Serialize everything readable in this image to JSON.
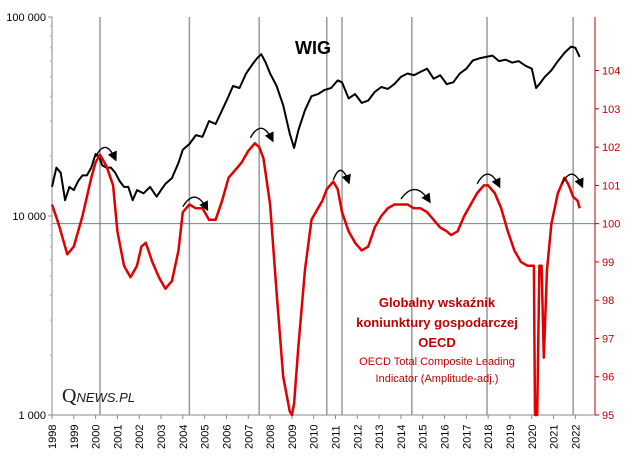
{
  "logo": {
    "q": "Q",
    "rest": "NEWS.PL"
  },
  "colors": {
    "wig": "#000000",
    "oecd": "#e00000",
    "right_axis": "#c00000",
    "hline": "#4a90b8",
    "vlines": "#9a9a9a"
  },
  "chart_data": {
    "type": "line",
    "title": "WIG",
    "x": {
      "ticks": [
        "1998",
        "1999",
        "2000",
        "2001",
        "2002",
        "2003",
        "2004",
        "2005",
        "2006",
        "2007",
        "2008",
        "2009",
        "2010",
        "2011",
        "2012",
        "2013",
        "2014",
        "2015",
        "2016",
        "2017",
        "2018",
        "2019",
        "2020",
        "2021",
        "2022"
      ],
      "range": [
        1998,
        2022.9
      ]
    },
    "y_left": {
      "scale": "log",
      "range": [
        1000,
        100000
      ],
      "ticks": [
        {
          "v": 1000,
          "label": "1 000"
        },
        {
          "v": 10000,
          "label": "10 000"
        },
        {
          "v": 100000,
          "label": "100 000"
        }
      ]
    },
    "y_right": {
      "range": [
        95,
        105.4
      ],
      "ticks": [
        {
          "v": 95,
          "label": "95"
        },
        {
          "v": 96,
          "label": "96"
        },
        {
          "v": 97,
          "label": "97"
        },
        {
          "v": 98,
          "label": "98"
        },
        {
          "v": 99,
          "label": "99"
        },
        {
          "v": 100,
          "label": "100"
        },
        {
          "v": 101,
          "label": "101"
        },
        {
          "v": 102,
          "label": "102"
        },
        {
          "v": 103,
          "label": "103"
        },
        {
          "v": 104,
          "label": "104"
        }
      ]
    },
    "reference_line": 100,
    "vertical_lines": [
      2000.2,
      2004.3,
      2007.5,
      2010.6,
      2011.3,
      2014.5,
      2017.95,
      2021.9
    ],
    "annotation": {
      "title_lines": [
        "Globalny wskaźnik",
        "koniunktury gospodarczej",
        "OECD"
      ],
      "subtitle_lines": [
        "OECD Total Composite Leading",
        "Indicator (Amplitude-adj.)"
      ]
    },
    "series": [
      {
        "name": "WIG",
        "axis": "left",
        "x": [
          1998.0,
          1998.2,
          1998.4,
          1998.6,
          1998.8,
          1999.0,
          1999.2,
          1999.4,
          1999.6,
          1999.8,
          2000.0,
          2000.15,
          2000.3,
          2000.5,
          2000.7,
          2000.9,
          2001.1,
          2001.3,
          2001.5,
          2001.7,
          2001.9,
          2002.2,
          2002.5,
          2002.8,
          2003.0,
          2003.2,
          2003.5,
          2003.8,
          2004.0,
          2004.3,
          2004.6,
          2004.9,
          2005.2,
          2005.5,
          2005.8,
          2006.1,
          2006.3,
          2006.6,
          2006.9,
          2007.2,
          2007.4,
          2007.6,
          2007.8,
          2008.0,
          2008.3,
          2008.6,
          2008.9,
          2009.1,
          2009.3,
          2009.6,
          2009.9,
          2010.2,
          2010.5,
          2010.8,
          2011.1,
          2011.3,
          2011.6,
          2011.9,
          2012.2,
          2012.5,
          2012.8,
          2013.1,
          2013.4,
          2013.7,
          2014.0,
          2014.3,
          2014.6,
          2014.9,
          2015.2,
          2015.5,
          2015.8,
          2016.1,
          2016.4,
          2016.7,
          2017.0,
          2017.3,
          2017.6,
          2017.9,
          2018.2,
          2018.5,
          2018.8,
          2019.1,
          2019.4,
          2019.7,
          2020.0,
          2020.2,
          2020.35,
          2020.6,
          2020.9,
          2021.2,
          2021.5,
          2021.8,
          2022.0,
          2022.2
        ],
        "y": [
          14000,
          17500,
          16500,
          12000,
          14000,
          13500,
          15000,
          16000,
          16000,
          17500,
          20500,
          20000,
          18000,
          17500,
          17500,
          16500,
          15000,
          14000,
          14000,
          12000,
          13500,
          13000,
          14000,
          12500,
          13500,
          14500,
          15500,
          18500,
          21500,
          23000,
          25500,
          25000,
          30000,
          29000,
          34000,
          40000,
          45000,
          44000,
          52000,
          58000,
          62000,
          65000,
          59000,
          52000,
          45000,
          36000,
          26000,
          22000,
          27000,
          34000,
          40000,
          41000,
          43000,
          44000,
          48000,
          47000,
          39000,
          41000,
          37000,
          38000,
          42000,
          44500,
          43500,
          46000,
          50000,
          52000,
          51000,
          53000,
          55000,
          49000,
          51000,
          46000,
          47000,
          52000,
          55000,
          60500,
          62000,
          63000,
          64000,
          60000,
          61000,
          59000,
          60000,
          57000,
          55000,
          44000,
          46000,
          50000,
          54000,
          60000,
          66000,
          71000,
          70000,
          63000
        ]
      },
      {
        "name": "OECD",
        "axis": "right",
        "x": [
          1998.0,
          1998.3,
          1998.7,
          1999.0,
          1999.4,
          1999.8,
          2000.0,
          2000.2,
          2000.5,
          2000.8,
          2001.0,
          2001.3,
          2001.6,
          2001.9,
          2002.1,
          2002.3,
          2002.6,
          2002.9,
          2003.2,
          2003.5,
          2003.8,
          2004.0,
          2004.3,
          2004.6,
          2004.9,
          2005.2,
          2005.5,
          2005.8,
          2006.1,
          2006.4,
          2006.7,
          2007.0,
          2007.3,
          2007.5,
          2007.7,
          2008.0,
          2008.3,
          2008.6,
          2008.9,
          2009.0,
          2009.1,
          2009.3,
          2009.6,
          2009.9,
          2010.2,
          2010.4,
          2010.6,
          2010.9,
          2011.1,
          2011.3,
          2011.6,
          2011.9,
          2012.2,
          2012.5,
          2012.8,
          2013.1,
          2013.4,
          2013.7,
          2014.0,
          2014.3,
          2014.6,
          2014.9,
          2015.2,
          2015.5,
          2015.8,
          2016.1,
          2016.3,
          2016.6,
          2016.9,
          2017.2,
          2017.5,
          2017.8,
          2018.0,
          2018.3,
          2018.6,
          2018.9,
          2019.2,
          2019.5,
          2019.8,
          2020.0,
          2020.1,
          2020.15,
          2020.25,
          2020.35,
          2020.45,
          2020.55,
          2020.7,
          2020.9,
          2021.2,
          2021.5,
          2021.7,
          2021.9,
          2022.1,
          2022.2
        ],
        "y": [
          100.5,
          100.0,
          99.2,
          99.4,
          100.2,
          101.2,
          101.6,
          101.8,
          101.5,
          101.0,
          99.8,
          98.9,
          98.6,
          98.9,
          99.4,
          99.5,
          99.0,
          98.6,
          98.3,
          98.5,
          99.3,
          100.3,
          100.5,
          100.4,
          100.4,
          100.1,
          100.1,
          100.6,
          101.2,
          101.4,
          101.6,
          101.9,
          102.1,
          102.0,
          101.7,
          100.5,
          98.2,
          96.0,
          95.1,
          95.0,
          95.3,
          96.8,
          98.8,
          100.1,
          100.4,
          100.6,
          100.9,
          101.1,
          100.9,
          100.3,
          99.8,
          99.5,
          99.3,
          99.4,
          99.9,
          100.2,
          100.4,
          100.5,
          100.5,
          100.5,
          100.4,
          100.4,
          100.3,
          100.1,
          99.9,
          99.8,
          99.7,
          99.8,
          100.2,
          100.5,
          100.8,
          101.0,
          101.0,
          100.8,
          100.4,
          99.8,
          99.3,
          99.0,
          98.9,
          98.9,
          98.9,
          95.0,
          95.0,
          98.9,
          98.9,
          96.5,
          98.8,
          100.0,
          100.8,
          101.2,
          101.0,
          100.7,
          100.6,
          100.4
        ]
      }
    ]
  }
}
